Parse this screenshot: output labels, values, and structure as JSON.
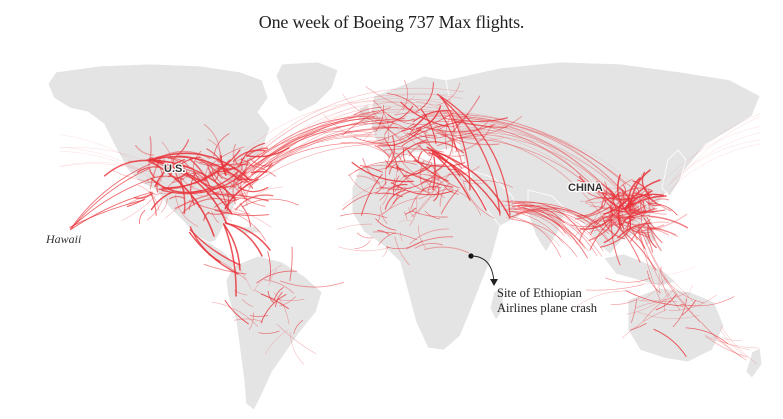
{
  "header": {
    "title": "One week of Boeing 737 Max flights."
  },
  "labels": {
    "us": "U.S.",
    "china": "CHINA",
    "hawaii": "Hawaii",
    "crash_line1": "Site of Ethiopian",
    "crash_line2": "Airlines plane crash"
  },
  "colors": {
    "land": "#e4e4e4",
    "border": "#ffffff",
    "route": "#e8333a"
  }
}
